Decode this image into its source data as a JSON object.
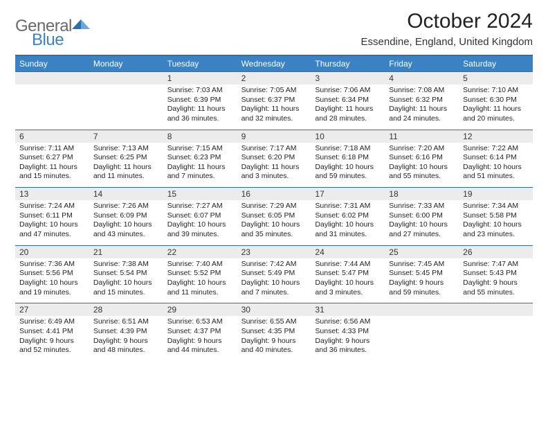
{
  "logo": {
    "general": "General",
    "blue": "Blue"
  },
  "title": "October 2024",
  "location": "Essendine, England, United Kingdom",
  "colors": {
    "header_bg": "#3b82c4",
    "header_text": "#ffffff",
    "rule": "#2f6fa8",
    "daynum_bg": "#ececec",
    "body_text": "#222222",
    "logo_gray": "#6a6a6a",
    "logo_blue": "#3b82c4"
  },
  "dow": [
    "Sunday",
    "Monday",
    "Tuesday",
    "Wednesday",
    "Thursday",
    "Friday",
    "Saturday"
  ],
  "weeks": [
    [
      {
        "num": "",
        "sunrise": "",
        "sunset": "",
        "daylight": ""
      },
      {
        "num": "",
        "sunrise": "",
        "sunset": "",
        "daylight": ""
      },
      {
        "num": "1",
        "sunrise": "Sunrise: 7:03 AM",
        "sunset": "Sunset: 6:39 PM",
        "daylight": "Daylight: 11 hours and 36 minutes."
      },
      {
        "num": "2",
        "sunrise": "Sunrise: 7:05 AM",
        "sunset": "Sunset: 6:37 PM",
        "daylight": "Daylight: 11 hours and 32 minutes."
      },
      {
        "num": "3",
        "sunrise": "Sunrise: 7:06 AM",
        "sunset": "Sunset: 6:34 PM",
        "daylight": "Daylight: 11 hours and 28 minutes."
      },
      {
        "num": "4",
        "sunrise": "Sunrise: 7:08 AM",
        "sunset": "Sunset: 6:32 PM",
        "daylight": "Daylight: 11 hours and 24 minutes."
      },
      {
        "num": "5",
        "sunrise": "Sunrise: 7:10 AM",
        "sunset": "Sunset: 6:30 PM",
        "daylight": "Daylight: 11 hours and 20 minutes."
      }
    ],
    [
      {
        "num": "6",
        "sunrise": "Sunrise: 7:11 AM",
        "sunset": "Sunset: 6:27 PM",
        "daylight": "Daylight: 11 hours and 15 minutes."
      },
      {
        "num": "7",
        "sunrise": "Sunrise: 7:13 AM",
        "sunset": "Sunset: 6:25 PM",
        "daylight": "Daylight: 11 hours and 11 minutes."
      },
      {
        "num": "8",
        "sunrise": "Sunrise: 7:15 AM",
        "sunset": "Sunset: 6:23 PM",
        "daylight": "Daylight: 11 hours and 7 minutes."
      },
      {
        "num": "9",
        "sunrise": "Sunrise: 7:17 AM",
        "sunset": "Sunset: 6:20 PM",
        "daylight": "Daylight: 11 hours and 3 minutes."
      },
      {
        "num": "10",
        "sunrise": "Sunrise: 7:18 AM",
        "sunset": "Sunset: 6:18 PM",
        "daylight": "Daylight: 10 hours and 59 minutes."
      },
      {
        "num": "11",
        "sunrise": "Sunrise: 7:20 AM",
        "sunset": "Sunset: 6:16 PM",
        "daylight": "Daylight: 10 hours and 55 minutes."
      },
      {
        "num": "12",
        "sunrise": "Sunrise: 7:22 AM",
        "sunset": "Sunset: 6:14 PM",
        "daylight": "Daylight: 10 hours and 51 minutes."
      }
    ],
    [
      {
        "num": "13",
        "sunrise": "Sunrise: 7:24 AM",
        "sunset": "Sunset: 6:11 PM",
        "daylight": "Daylight: 10 hours and 47 minutes."
      },
      {
        "num": "14",
        "sunrise": "Sunrise: 7:26 AM",
        "sunset": "Sunset: 6:09 PM",
        "daylight": "Daylight: 10 hours and 43 minutes."
      },
      {
        "num": "15",
        "sunrise": "Sunrise: 7:27 AM",
        "sunset": "Sunset: 6:07 PM",
        "daylight": "Daylight: 10 hours and 39 minutes."
      },
      {
        "num": "16",
        "sunrise": "Sunrise: 7:29 AM",
        "sunset": "Sunset: 6:05 PM",
        "daylight": "Daylight: 10 hours and 35 minutes."
      },
      {
        "num": "17",
        "sunrise": "Sunrise: 7:31 AM",
        "sunset": "Sunset: 6:02 PM",
        "daylight": "Daylight: 10 hours and 31 minutes."
      },
      {
        "num": "18",
        "sunrise": "Sunrise: 7:33 AM",
        "sunset": "Sunset: 6:00 PM",
        "daylight": "Daylight: 10 hours and 27 minutes."
      },
      {
        "num": "19",
        "sunrise": "Sunrise: 7:34 AM",
        "sunset": "Sunset: 5:58 PM",
        "daylight": "Daylight: 10 hours and 23 minutes."
      }
    ],
    [
      {
        "num": "20",
        "sunrise": "Sunrise: 7:36 AM",
        "sunset": "Sunset: 5:56 PM",
        "daylight": "Daylight: 10 hours and 19 minutes."
      },
      {
        "num": "21",
        "sunrise": "Sunrise: 7:38 AM",
        "sunset": "Sunset: 5:54 PM",
        "daylight": "Daylight: 10 hours and 15 minutes."
      },
      {
        "num": "22",
        "sunrise": "Sunrise: 7:40 AM",
        "sunset": "Sunset: 5:52 PM",
        "daylight": "Daylight: 10 hours and 11 minutes."
      },
      {
        "num": "23",
        "sunrise": "Sunrise: 7:42 AM",
        "sunset": "Sunset: 5:49 PM",
        "daylight": "Daylight: 10 hours and 7 minutes."
      },
      {
        "num": "24",
        "sunrise": "Sunrise: 7:44 AM",
        "sunset": "Sunset: 5:47 PM",
        "daylight": "Daylight: 10 hours and 3 minutes."
      },
      {
        "num": "25",
        "sunrise": "Sunrise: 7:45 AM",
        "sunset": "Sunset: 5:45 PM",
        "daylight": "Daylight: 9 hours and 59 minutes."
      },
      {
        "num": "26",
        "sunrise": "Sunrise: 7:47 AM",
        "sunset": "Sunset: 5:43 PM",
        "daylight": "Daylight: 9 hours and 55 minutes."
      }
    ],
    [
      {
        "num": "27",
        "sunrise": "Sunrise: 6:49 AM",
        "sunset": "Sunset: 4:41 PM",
        "daylight": "Daylight: 9 hours and 52 minutes."
      },
      {
        "num": "28",
        "sunrise": "Sunrise: 6:51 AM",
        "sunset": "Sunset: 4:39 PM",
        "daylight": "Daylight: 9 hours and 48 minutes."
      },
      {
        "num": "29",
        "sunrise": "Sunrise: 6:53 AM",
        "sunset": "Sunset: 4:37 PM",
        "daylight": "Daylight: 9 hours and 44 minutes."
      },
      {
        "num": "30",
        "sunrise": "Sunrise: 6:55 AM",
        "sunset": "Sunset: 4:35 PM",
        "daylight": "Daylight: 9 hours and 40 minutes."
      },
      {
        "num": "31",
        "sunrise": "Sunrise: 6:56 AM",
        "sunset": "Sunset: 4:33 PM",
        "daylight": "Daylight: 9 hours and 36 minutes."
      },
      {
        "num": "",
        "sunrise": "",
        "sunset": "",
        "daylight": ""
      },
      {
        "num": "",
        "sunrise": "",
        "sunset": "",
        "daylight": ""
      }
    ]
  ]
}
